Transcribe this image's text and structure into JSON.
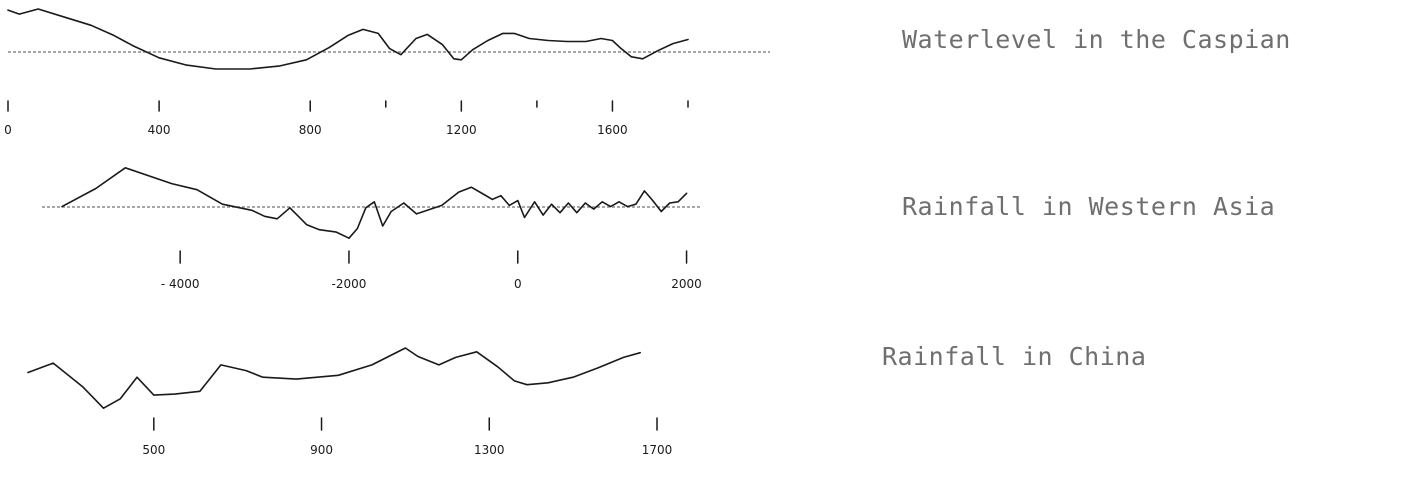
{
  "chart_data": [
    {
      "type": "line",
      "title": "Waterlevel in the Caspian",
      "x_ticks": [
        "0",
        "400",
        "800",
        "1200",
        "1600"
      ],
      "series": [
        {
          "x": [
            0,
            30,
            80,
            150,
            220,
            280,
            330,
            400,
            470,
            550,
            640,
            720,
            790,
            850,
            900,
            940,
            980,
            1010,
            1040,
            1080,
            1110,
            1150,
            1180,
            1200,
            1230,
            1270,
            1310,
            1340,
            1380,
            1430,
            1480,
            1530,
            1570,
            1600,
            1620,
            1650,
            1680,
            1720,
            1760,
            1800
          ],
          "y": [
            4.1,
            3.7,
            4.2,
            3.4,
            2.6,
            1.6,
            0.6,
            -0.6,
            -1.3,
            -1.7,
            -1.7,
            -1.4,
            -0.8,
            0.4,
            1.6,
            2.2,
            1.8,
            0.3,
            -0.3,
            1.3,
            1.7,
            0.7,
            -0.7,
            -0.8,
            0.2,
            1.1,
            1.8,
            1.8,
            1.3,
            1.1,
            1.0,
            1.0,
            1.3,
            1.1,
            0.4,
            -0.5,
            -0.7,
            0.1,
            0.8,
            1.2
          ]
        }
      ],
      "xlim": [
        0,
        1800
      ],
      "ylim": [
        -2,
        4.5
      ]
    },
    {
      "type": "line",
      "title": "Rainfall in Western Asia",
      "x_ticks": [
        "- 4000",
        "-2000",
        "0",
        "2000"
      ],
      "series": [
        {
          "x": [
            -5400,
            -5000,
            -4650,
            -4100,
            -3800,
            -3500,
            -3150,
            -3000,
            -2850,
            -2700,
            -2500,
            -2350,
            -2150,
            -2000,
            -1900,
            -1800,
            -1700,
            -1600,
            -1500,
            -1350,
            -1200,
            -900,
            -700,
            -550,
            -400,
            -300,
            -200,
            -100,
            0,
            80,
            200,
            300,
            400,
            500,
            600,
            700,
            800,
            900,
            1000,
            1100,
            1200,
            1300,
            1400,
            1500,
            1600,
            1700,
            1800,
            1900,
            2000
          ],
          "y": [
            0,
            1.5,
            3.2,
            1.9,
            1.4,
            0.2,
            -0.3,
            -0.8,
            -1.0,
            -0.1,
            -1.5,
            -1.9,
            -2.1,
            -2.6,
            -1.8,
            -0.1,
            0.4,
            -1.6,
            -0.4,
            0.3,
            -0.6,
            0.1,
            1.2,
            1.6,
            1.0,
            0.6,
            0.9,
            0.1,
            0.5,
            -0.9,
            0.4,
            -0.7,
            0.2,
            -0.5,
            0.3,
            -0.5,
            0.3,
            -0.2,
            0.4,
            0.0,
            0.4,
            0.0,
            0.2,
            1.3,
            0.5,
            -0.4,
            0.3,
            0.4,
            1.1
          ]
        }
      ],
      "xlim": [
        -5400,
        2100
      ],
      "ylim": [
        -3,
        3.6
      ]
    },
    {
      "type": "line",
      "title": "Rainfall in China",
      "x_ticks": [
        "500",
        "900",
        "1300",
        "1700"
      ],
      "series": [
        {
          "x": [
            200,
            260,
            330,
            380,
            420,
            460,
            500,
            550,
            610,
            660,
            720,
            760,
            840,
            940,
            1020,
            1100,
            1130,
            1180,
            1220,
            1270,
            1320,
            1360,
            1390,
            1440,
            1500,
            1560,
            1620,
            1660
          ],
          "y": [
            2.0,
            3.0,
            0.5,
            -1.8,
            -0.8,
            1.5,
            -0.4,
            -0.3,
            0.0,
            2.8,
            2.2,
            1.5,
            1.3,
            1.7,
            2.8,
            4.6,
            3.7,
            2.8,
            3.6,
            4.2,
            2.6,
            1.1,
            0.7,
            0.9,
            1.5,
            2.5,
            3.6,
            4.1
          ]
        }
      ],
      "xlim": [
        200,
        1700
      ],
      "ylim": [
        -2.2,
        4.6
      ]
    }
  ],
  "colors": {
    "ink": "#1a1a1a",
    "baseline": "#8a8a8a",
    "title": "#6f6f6f"
  }
}
